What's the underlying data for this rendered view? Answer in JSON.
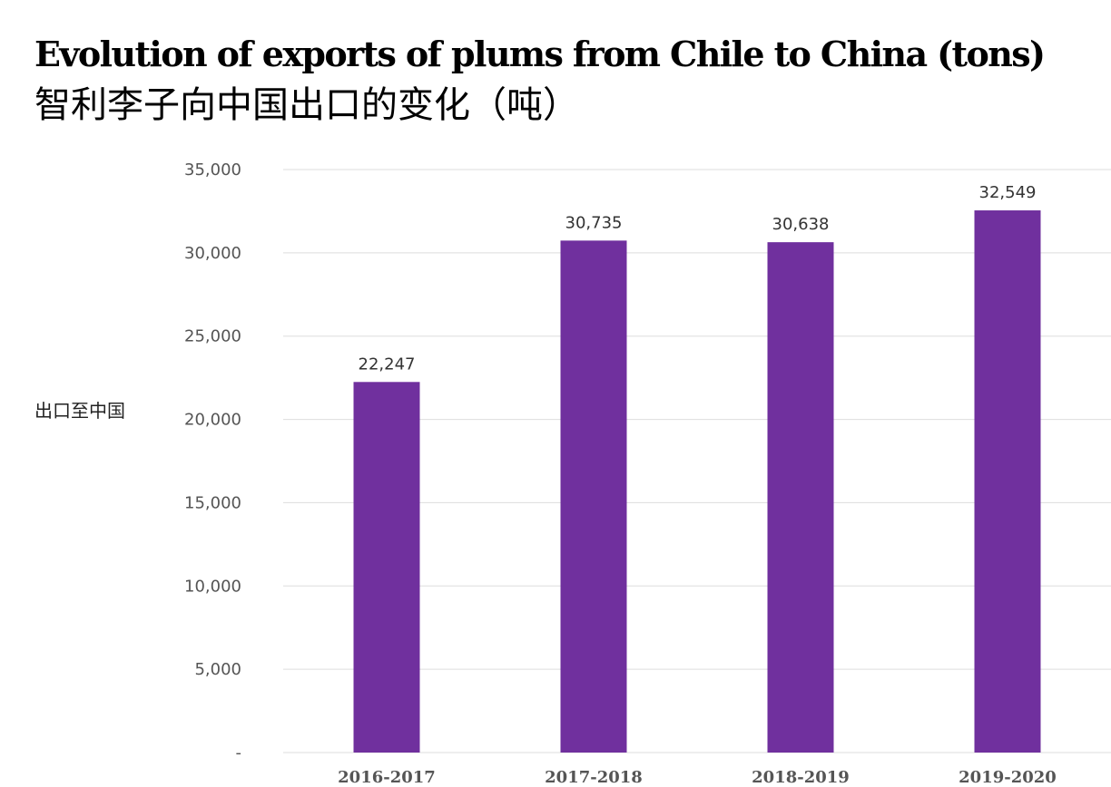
{
  "chart_data": {
    "type": "bar",
    "title": "Evolution of exports of plums from Chile to China (tons)",
    "subtitle": "智利李子向中国出口的变化（吨）",
    "ylabel": "出口至中国",
    "categories": [
      "2016-2017",
      "2017-2018",
      "2018-2019",
      "2019-2020"
    ],
    "series": [
      {
        "values": [
          22247,
          30735,
          30638,
          32549
        ],
        "value_labels": [
          "22,247",
          "30,735",
          "30,638",
          "32,549"
        ],
        "color": "#70309e"
      }
    ],
    "ylim": [
      0,
      35000
    ],
    "yticks": [
      0,
      5000,
      10000,
      15000,
      20000,
      25000,
      30000,
      35000
    ],
    "ytick_labels": [
      "-",
      "5,000",
      "10,000",
      "15,000",
      "20,000",
      "25,000",
      "30,000",
      "35,000"
    ],
    "grid": true,
    "gridline_color": "#dddddd",
    "legend": "none"
  }
}
